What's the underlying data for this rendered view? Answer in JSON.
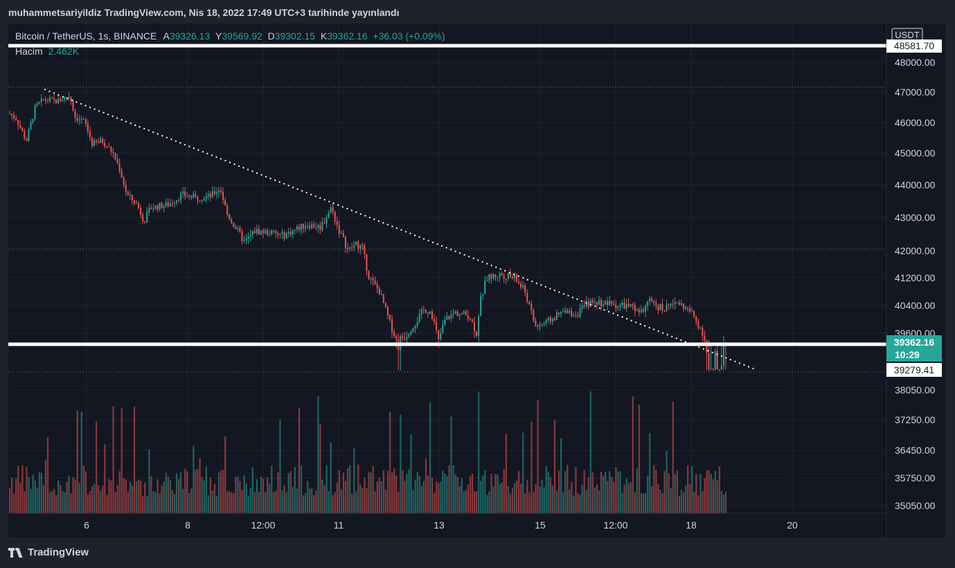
{
  "header": {
    "title": "muhammetsariyildiz TradingView.com, Nis 18, 2022 17:49 UTC+3 tarihinde yayınlandı"
  },
  "legend": {
    "symbol": "Bitcoin / TetherUS, 1s, BINANCE",
    "open_label": "A",
    "open": "39326.13",
    "high_label": "Y",
    "high": "39569.92",
    "low_label": "D",
    "low": "39302.15",
    "close_label": "K",
    "close": "39362.16",
    "change": "+36.03 (+0.09%)",
    "volume_label": "Hacim",
    "volume": "2.462K"
  },
  "footer": {
    "brand": "TradingView"
  },
  "colors": {
    "up": "#26a69a",
    "down": "#ef5350",
    "background": "#131722",
    "axis_bg": "#1e222d",
    "text": "#d1d4dc"
  },
  "chart_data": {
    "type": "candlestick",
    "currency": "USDT",
    "y_ticks": [
      "48000.00",
      "47000.00",
      "46000.00",
      "45000.00",
      "44000.00",
      "43000.00",
      "42000.00",
      "41200.00",
      "40400.00",
      "39600.00",
      "38050.00",
      "37250.00",
      "36450.00",
      "35750.00",
      "35050.00"
    ],
    "x_ticks": [
      "6",
      "8",
      "12:00",
      "11",
      "13",
      "15",
      "12:00",
      "18",
      "20"
    ],
    "price_labels": {
      "top_line": "48581.70",
      "current": "39362.16",
      "countdown": "10:29",
      "low_line": "39279.41"
    },
    "path": [
      [
        0,
        46300
      ],
      [
        10,
        46150
      ],
      [
        25,
        45400
      ],
      [
        38,
        46500
      ],
      [
        50,
        46750
      ],
      [
        70,
        46700
      ],
      [
        88,
        46900
      ],
      [
        95,
        46200
      ],
      [
        110,
        46000
      ],
      [
        120,
        45300
      ],
      [
        135,
        45400
      ],
      [
        150,
        45000
      ],
      [
        160,
        44500
      ],
      [
        170,
        43700
      ],
      [
        185,
        43400
      ],
      [
        195,
        42900
      ],
      [
        205,
        43300
      ],
      [
        230,
        43400
      ],
      [
        250,
        43700
      ],
      [
        270,
        43600
      ],
      [
        290,
        43650
      ],
      [
        305,
        43900
      ],
      [
        315,
        43100
      ],
      [
        330,
        42600
      ],
      [
        340,
        42250
      ],
      [
        355,
        42600
      ],
      [
        375,
        42550
      ],
      [
        395,
        42450
      ],
      [
        410,
        42600
      ],
      [
        430,
        42800
      ],
      [
        450,
        42700
      ],
      [
        465,
        43300
      ],
      [
        475,
        42700
      ],
      [
        490,
        42000
      ],
      [
        500,
        42200
      ],
      [
        510,
        42100
      ],
      [
        520,
        41200
      ],
      [
        535,
        40800
      ],
      [
        550,
        39900
      ],
      [
        560,
        39400
      ],
      [
        575,
        39600
      ],
      [
        590,
        40000
      ],
      [
        600,
        40300
      ],
      [
        610,
        40200
      ],
      [
        620,
        39400
      ],
      [
        630,
        40000
      ],
      [
        645,
        40200
      ],
      [
        665,
        40100
      ],
      [
        675,
        39600
      ],
      [
        680,
        40500
      ],
      [
        690,
        41200
      ],
      [
        710,
        41300
      ],
      [
        730,
        41200
      ],
      [
        745,
        40800
      ],
      [
        760,
        39800
      ],
      [
        775,
        39900
      ],
      [
        800,
        40200
      ],
      [
        820,
        40150
      ],
      [
        835,
        40450
      ],
      [
        850,
        40500
      ],
      [
        865,
        40450
      ],
      [
        880,
        40400
      ],
      [
        895,
        40400
      ],
      [
        910,
        40150
      ],
      [
        925,
        40500
      ],
      [
        945,
        40300
      ],
      [
        965,
        40500
      ],
      [
        985,
        40200
      ],
      [
        1000,
        39700
      ],
      [
        1008,
        39300
      ],
      [
        1015,
        39200
      ],
      [
        1025,
        39300
      ],
      [
        1033,
        39400
      ],
      [
        1038,
        39550
      ]
    ],
    "ylim": [
      35050,
      48581.7
    ]
  }
}
